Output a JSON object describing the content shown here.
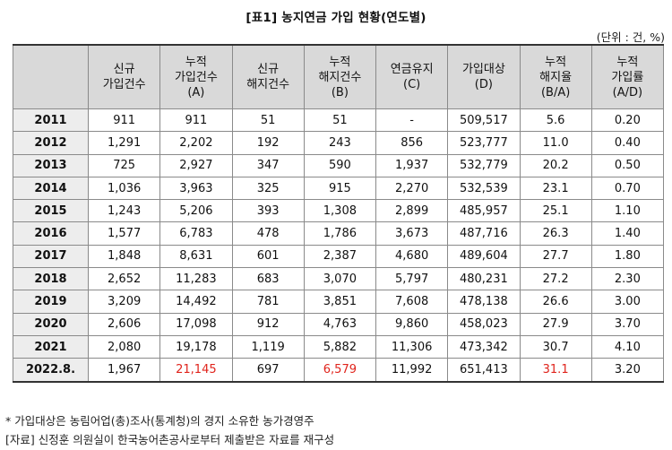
{
  "title": "[표1] 농지연금 가입 현황(연도별)",
  "unit": "(단위 : 건, %)",
  "columns": [
    {
      "lines": [
        "",
        ""
      ]
    },
    {
      "lines": [
        "신규",
        "가입건수"
      ]
    },
    {
      "lines": [
        "누적",
        "가입건수",
        "(A)"
      ]
    },
    {
      "lines": [
        "신규",
        "해지건수"
      ]
    },
    {
      "lines": [
        "누적",
        "해지건수",
        "(B)"
      ]
    },
    {
      "lines": [
        "연금유지",
        "(C)"
      ]
    },
    {
      "lines": [
        "가입대상",
        "(D)"
      ]
    },
    {
      "lines": [
        "누적",
        "해지율",
        "(B/A)"
      ]
    },
    {
      "lines": [
        "누적",
        "가입률",
        "(A/D)"
      ]
    }
  ],
  "rows": [
    [
      "2011",
      "911",
      "911",
      "51",
      "51",
      "-",
      "509,517",
      "5.6",
      "0.20"
    ],
    [
      "2012",
      "1,291",
      "2,202",
      "192",
      "243",
      "856",
      "523,777",
      "11.0",
      "0.40"
    ],
    [
      "2013",
      "725",
      "2,927",
      "347",
      "590",
      "1,937",
      "532,779",
      "20.2",
      "0.50"
    ],
    [
      "2014",
      "1,036",
      "3,963",
      "325",
      "915",
      "2,270",
      "532,539",
      "23.1",
      "0.70"
    ],
    [
      "2015",
      "1,243",
      "5,206",
      "393",
      "1,308",
      "2,899",
      "485,957",
      "25.1",
      "1.10"
    ],
    [
      "2016",
      "1,577",
      "6,783",
      "478",
      "1,786",
      "3,673",
      "487,716",
      "26.3",
      "1.40"
    ],
    [
      "2017",
      "1,848",
      "8,631",
      "601",
      "2,387",
      "4,680",
      "489,604",
      "27.7",
      "1.80"
    ],
    [
      "2018",
      "2,652",
      "11,283",
      "683",
      "3,070",
      "5,797",
      "480,231",
      "27.2",
      "2.30"
    ],
    [
      "2019",
      "3,209",
      "14,492",
      "781",
      "3,851",
      "7,608",
      "478,138",
      "26.6",
      "3.00"
    ],
    [
      "2020",
      "2,606",
      "17,098",
      "912",
      "4,763",
      "9,860",
      "458,023",
      "27.9",
      "3.70"
    ],
    [
      "2021",
      "2,080",
      "19,178",
      "1,119",
      "5,882",
      "11,306",
      "473,342",
      "30.7",
      "4.10"
    ],
    [
      "2022.8.",
      "1,967",
      "21,145",
      "697",
      "6,579",
      "11,992",
      "651,413",
      "31.1",
      "3.20"
    ]
  ],
  "highlight_color": "#e0241c",
  "footnotes": [
    "* 가입대상은 농림어업(총)조사(통계청)의 경지 소유한 농가경영주",
    "[자료] 신정훈 의원실이 한국농어촌공사로부터 제출받은 자료를 재구성"
  ]
}
